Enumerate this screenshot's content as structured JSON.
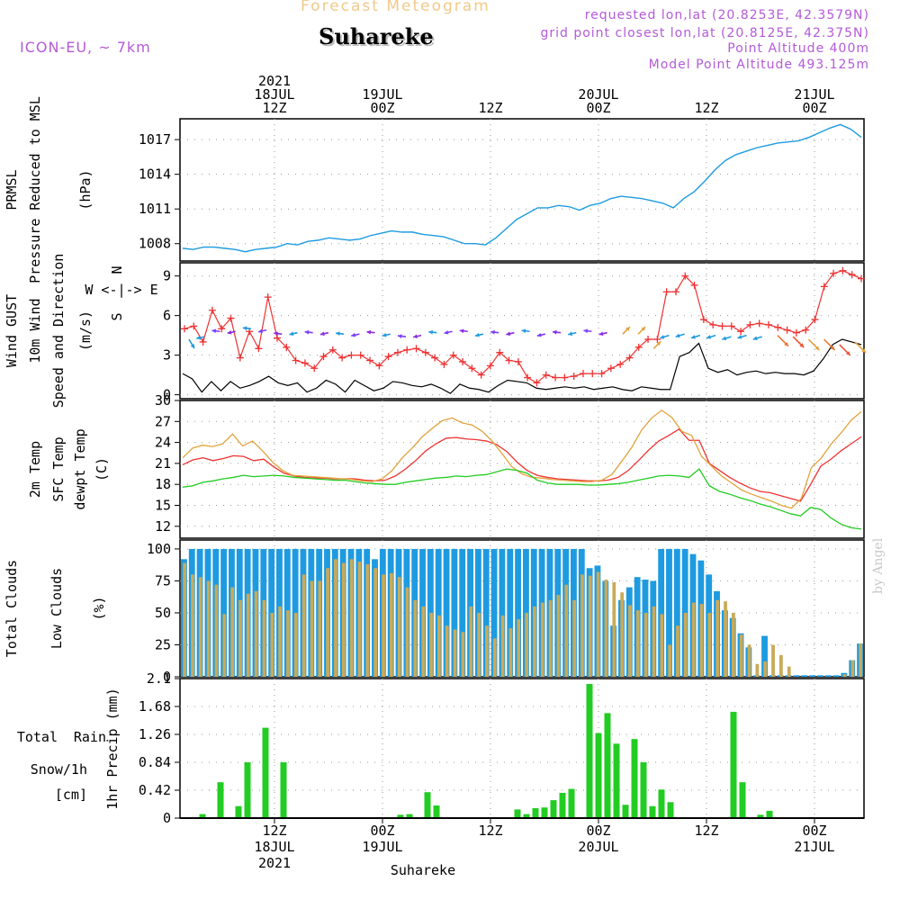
{
  "header": {
    "forecast_title": "Forecast Meteogram",
    "station": "Suhareke",
    "model": "ICON-EU, ~ 7km",
    "requested": "requested lon,lat (20.8253E, 42.3579N)",
    "grid_point": "grid point closest lon,lat (20.8125E, 42.375N)",
    "point_altitude": "Point Altitude 400m",
    "model_altitude": "Model Point Altitude 493.125m",
    "watermark": "by Angel"
  },
  "footer": {
    "station": "Suhareke"
  },
  "colors": {
    "pressure": "#1e9be0",
    "gust": "#ee3333",
    "wind": "#000000",
    "temp2m": "#ee3333",
    "sfctemp": "#e2a33c",
    "dewpt": "#22cc22",
    "total_clouds": "#1e9be0",
    "low_clouds": "#c8aa5a",
    "rain": "#22cc22",
    "compass": "#b45ad9"
  },
  "time_axis": {
    "top": [
      {
        "x_hour": 12,
        "lines": [
          "2021",
          "18JUL",
          "12Z"
        ]
      },
      {
        "x_hour": 24,
        "lines": [
          "19JUL",
          "00Z"
        ]
      },
      {
        "x_hour": 36,
        "lines": [
          "12Z"
        ]
      },
      {
        "x_hour": 48,
        "lines": [
          "20JUL",
          "00Z"
        ]
      },
      {
        "x_hour": 60,
        "lines": [
          "12Z"
        ]
      },
      {
        "x_hour": 72,
        "lines": [
          "21JUL",
          "00Z"
        ]
      }
    ],
    "bottom": [
      {
        "x_hour": 12,
        "lines": [
          "12Z",
          "18JUL",
          "2021"
        ]
      },
      {
        "x_hour": 24,
        "lines": [
          "00Z",
          "19JUL"
        ]
      },
      {
        "x_hour": 36,
        "lines": [
          "12Z"
        ]
      },
      {
        "x_hour": 48,
        "lines": [
          "00Z",
          "20JUL"
        ]
      },
      {
        "x_hour": 60,
        "lines": [
          "12Z"
        ]
      },
      {
        "x_hour": 72,
        "lines": [
          "00Z",
          "21JUL"
        ]
      }
    ],
    "range_hours": [
      1.5,
      77.5
    ]
  },
  "chart_data": [
    {
      "type": "line",
      "panel": "pressure",
      "ylabel_lines": [
        "PRMSL",
        "Pressure Reduced to MSL"
      ],
      "unit": "(hPa)",
      "ylim": [
        1006.5,
        1018.8
      ],
      "yticks": [
        1008,
        1011,
        1014,
        1017
      ],
      "series": [
        {
          "name": "PRMSL",
          "values": [
            1007.6,
            1007.5,
            1007.7,
            1007.7,
            1007.6,
            1007.5,
            1007.3,
            1007.5,
            1007.6,
            1007.7,
            1008.0,
            1007.9,
            1008.2,
            1008.3,
            1008.5,
            1008.4,
            1008.3,
            1008.4,
            1008.7,
            1008.9,
            1009.1,
            1009.0,
            1009.0,
            1008.8,
            1008.7,
            1008.6,
            1008.3,
            1008.0,
            1008.0,
            1007.9,
            1008.5,
            1009.3,
            1010.1,
            1010.6,
            1011.1,
            1011.1,
            1011.3,
            1011.2,
            1010.9,
            1011.3,
            1011.5,
            1011.9,
            1012.1,
            1012.0,
            1011.9,
            1011.7,
            1011.5,
            1011.1,
            1011.9,
            1012.5,
            1013.4,
            1014.4,
            1015.2,
            1015.7,
            1016.0,
            1016.3,
            1016.5,
            1016.7,
            1016.8,
            1016.9,
            1017.2,
            1017.6,
            1018.0,
            1018.3,
            1017.9,
            1017.2
          ]
        }
      ]
    },
    {
      "type": "line",
      "panel": "wind",
      "ylabel_lines": [
        "Wind GUST",
        "10m Wind",
        "Speed and Direction"
      ],
      "unit": "(m/s)",
      "compass": [
        "N",
        "W <-|-> E",
        "S"
      ],
      "ylim": [
        -0.3,
        10.0
      ],
      "yticks": [
        0,
        3,
        6,
        9
      ],
      "series": [
        {
          "name": "Wind GUST",
          "values": [
            5.0,
            5.2,
            4.0,
            6.4,
            5.0,
            5.8,
            2.8,
            4.8,
            3.5,
            7.4,
            4.3,
            3.6,
            2.6,
            2.4,
            2.0,
            2.9,
            3.4,
            2.8,
            3.0,
            3.0,
            2.6,
            2.2,
            2.9,
            3.2,
            3.4,
            3.5,
            3.2,
            2.8,
            2.3,
            3.0,
            2.5,
            2.0,
            1.5,
            2.2,
            3.2,
            2.6,
            2.5,
            1.3,
            0.9,
            1.5,
            1.3,
            1.3,
            1.4,
            1.6,
            1.6,
            1.6,
            2.0,
            2.3,
            2.8,
            3.6,
            4.2,
            4.2,
            7.8,
            7.8,
            9.0,
            8.3,
            5.7,
            5.3,
            5.2,
            5.2,
            4.8,
            5.3,
            5.4,
            5.3,
            5.1,
            4.9,
            4.7,
            4.9,
            5.7,
            8.2,
            9.2,
            9.4,
            9.1,
            8.8
          ]
        },
        {
          "name": "10m Wind",
          "values": [
            1.6,
            1.2,
            0.2,
            1.0,
            0.3,
            1.0,
            0.5,
            0.7,
            1.0,
            1.4,
            0.9,
            0.7,
            0.9,
            0.2,
            0.5,
            1.1,
            0.8,
            0.2,
            1.1,
            0.7,
            0.3,
            0.5,
            1.0,
            0.9,
            0.7,
            0.6,
            0.8,
            0.5,
            0.1,
            0.8,
            0.5,
            0.4,
            0.2,
            0.7,
            1.1,
            1.0,
            0.9,
            0.5,
            0.4,
            0.5,
            0.6,
            0.5,
            0.6,
            0.4,
            0.5,
            0.6,
            0.4,
            0.3,
            0.6,
            0.5,
            0.4,
            0.4,
            2.9,
            3.2,
            3.9,
            2.0,
            1.7,
            1.9,
            1.5,
            1.7,
            1.8,
            1.6,
            1.7,
            1.6,
            1.6,
            1.5,
            1.8,
            2.7,
            3.8,
            4.2,
            4.0,
            3.8
          ]
        },
        {
          "name": "Speed and Direction",
          "values": [
            4.2,
            4.4,
            4.8,
            4.8,
            5.0,
            4.9,
            4.6,
            4.7,
            4.7,
            4.7,
            4.6,
            4.6,
            4.7,
            4.6,
            4.4,
            4.5,
            4.7,
            4.8,
            4.8,
            4.6,
            4.7,
            4.7,
            4.8,
            4.6,
            4.7,
            4.7,
            4.8,
            4.7,
            4.6,
            4.6,
            3.5,
            4.5,
            4.6,
            4.5,
            4.5,
            4.4,
            4.5,
            4.4,
            4.5,
            4.4,
            4.2,
            4.2,
            3.8,
            4.0
          ]
        }
      ]
    },
    {
      "type": "line",
      "panel": "temperature",
      "ylabel_lines": [
        "2m Temp",
        "SFC Temp",
        "dewpt Temp"
      ],
      "unit": "(C)",
      "ylim": [
        10.3,
        30.0
      ],
      "yticks": [
        12,
        15,
        18,
        21,
        24,
        27,
        30
      ],
      "series": [
        {
          "name": "2m Temp",
          "values": [
            20.8,
            21.5,
            21.8,
            21.4,
            21.7,
            22.1,
            22.0,
            21.4,
            21.6,
            20.5,
            19.6,
            19.2,
            19.0,
            18.9,
            18.9,
            18.8,
            18.8,
            18.8,
            18.6,
            18.5,
            18.6,
            19.2,
            20.2,
            21.4,
            22.8,
            23.8,
            24.6,
            24.7,
            24.5,
            24.4,
            24.2,
            23.7,
            22.7,
            21.2,
            20.0,
            19.3,
            19.0,
            18.8,
            18.7,
            18.6,
            18.5,
            18.5,
            18.6,
            19.0,
            20.0,
            21.4,
            22.9,
            24.2,
            25.0,
            25.9,
            24.3,
            24.3,
            21.0,
            20.0,
            19.0,
            18.2,
            17.5,
            17.0,
            16.8,
            16.4,
            16.0,
            15.6,
            18.0,
            20.6,
            21.6,
            22.8,
            23.8,
            24.8
          ]
        },
        {
          "name": "SFC Temp",
          "values": [
            21.8,
            23.2,
            23.6,
            23.4,
            23.8,
            25.2,
            23.5,
            24.2,
            22.8,
            21.2,
            20.0,
            19.3,
            19.2,
            19.1,
            19.0,
            18.9,
            18.8,
            18.7,
            18.5,
            18.4,
            18.8,
            20.0,
            21.8,
            23.2,
            24.8,
            26.0,
            27.1,
            27.5,
            26.8,
            26.5,
            25.6,
            24.2,
            22.4,
            20.5,
            19.5,
            19.0,
            18.9,
            18.7,
            18.6,
            18.5,
            18.4,
            18.4,
            18.6,
            19.4,
            21.3,
            23.3,
            25.8,
            27.5,
            28.6,
            27.6,
            25.6,
            25.0,
            22.0,
            20.6,
            19.2,
            18.2,
            17.2,
            16.6,
            16.1,
            15.6,
            15.0,
            14.6,
            16.0,
            20.4,
            21.8,
            23.8,
            25.4,
            27.2,
            28.4
          ]
        },
        {
          "name": "dewpt Temp",
          "values": [
            17.6,
            17.8,
            18.3,
            18.5,
            18.8,
            19.0,
            19.3,
            19.1,
            19.2,
            19.3,
            19.2,
            19.0,
            18.9,
            18.8,
            18.7,
            18.6,
            18.6,
            18.4,
            18.2,
            18.1,
            18.0,
            18.0,
            18.3,
            18.5,
            18.7,
            18.9,
            19.0,
            19.2,
            19.1,
            19.3,
            19.4,
            19.8,
            20.2,
            20.0,
            19.6,
            18.6,
            18.2,
            18.0,
            18.0,
            18.0,
            17.9,
            17.9,
            18.0,
            18.1,
            18.3,
            18.6,
            18.9,
            19.2,
            19.3,
            19.2,
            19.0,
            20.2,
            17.8,
            17.0,
            16.6,
            16.1,
            15.7,
            15.2,
            14.8,
            14.3,
            13.8,
            13.5,
            14.7,
            14.4,
            13.2,
            12.3,
            11.8,
            11.6
          ]
        }
      ]
    },
    {
      "type": "bar",
      "panel": "clouds",
      "ylabel_lines": [
        "Total Clouds",
        "Low Clouds"
      ],
      "unit": "(%)",
      "ylim": [
        0,
        107
      ],
      "yticks": [
        0,
        25,
        50,
        75,
        100
      ],
      "series": [
        {
          "name": "Total Clouds",
          "values": [
            92,
            100,
            100,
            100,
            100,
            100,
            100,
            100,
            100,
            100,
            100,
            100,
            100,
            100,
            100,
            100,
            100,
            100,
            100,
            100,
            100,
            100,
            100,
            100,
            92,
            100,
            100,
            100,
            100,
            100,
            100,
            100,
            100,
            100,
            100,
            100,
            100,
            100,
            100,
            100,
            100,
            100,
            100,
            100,
            100,
            100,
            100,
            100,
            100,
            100,
            100,
            85,
            87,
            75,
            40,
            60,
            70,
            78,
            76,
            75,
            100,
            100,
            100,
            100,
            96,
            91,
            80,
            67,
            52,
            46,
            34,
            23,
            0,
            32,
            0,
            0,
            0,
            0,
            0,
            0,
            0,
            0,
            0,
            3,
            13,
            26
          ]
        },
        {
          "name": "Low Clouds",
          "values": [
            89,
            80,
            78,
            75,
            72,
            49,
            70,
            60,
            65,
            67,
            60,
            50,
            55,
            52,
            50,
            80,
            75,
            75,
            85,
            92,
            89,
            92,
            90,
            88,
            85,
            80,
            81,
            78,
            70,
            60,
            55,
            50,
            48,
            40,
            37,
            35,
            55,
            50,
            40,
            30,
            48,
            38,
            45,
            50,
            55,
            58,
            60,
            64,
            72,
            60,
            80,
            79,
            82,
            76,
            74,
            66,
            56,
            52,
            50,
            55,
            49,
            25,
            40,
            50,
            58,
            57,
            50,
            60,
            59,
            50,
            33,
            25,
            10,
            12,
            25,
            17,
            8,
            0,
            0,
            0,
            0,
            0,
            0,
            2,
            13,
            26
          ]
        }
      ]
    },
    {
      "type": "bar",
      "panel": "precip",
      "ylabel_lines": [
        "Total Rain",
        "Snow/1h",
        "[cm]"
      ],
      "unit": "1hr Precip (mm)",
      "ylim": [
        0,
        2.1
      ],
      "yticks": [
        0,
        0.42,
        0.84,
        1.26,
        1.68,
        2.1
      ],
      "ytick_labels": [
        "0",
        "0.42",
        "0.84",
        "1.26",
        "1.68",
        "2.1"
      ],
      "series": [
        {
          "name": "Total Rain",
          "points": [
            [
              2,
              0.06
            ],
            [
              4,
              0.54
            ],
            [
              6,
              0.18
            ],
            [
              7,
              0.84
            ],
            [
              9,
              1.36
            ],
            [
              11,
              0.84
            ],
            [
              24,
              0.05
            ],
            [
              25,
              0.06
            ],
            [
              27,
              0.39
            ],
            [
              28,
              0.19
            ],
            [
              37,
              0.13
            ],
            [
              38,
              0.06
            ],
            [
              39,
              0.15
            ],
            [
              40,
              0.16
            ],
            [
              41,
              0.27
            ],
            [
              42,
              0.38
            ],
            [
              43,
              0.44
            ],
            [
              45,
              2.02
            ],
            [
              46,
              1.28
            ],
            [
              47,
              1.58
            ],
            [
              48,
              1.12
            ],
            [
              49,
              0.2
            ],
            [
              50,
              1.19
            ],
            [
              51,
              0.84
            ],
            [
              52,
              0.18
            ],
            [
              53,
              0.43
            ],
            [
              54,
              0.24
            ],
            [
              61,
              1.6
            ],
            [
              62,
              0.54
            ],
            [
              64,
              0.05
            ],
            [
              65,
              0.11
            ],
            [
              66,
              0.01
            ]
          ]
        }
      ]
    }
  ]
}
